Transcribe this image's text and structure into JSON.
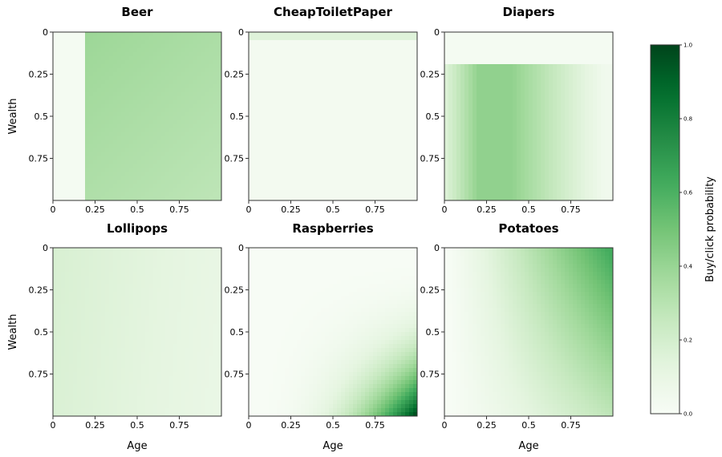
{
  "chart_data": {
    "type": "heatmap",
    "colormap": "Greens",
    "colorbar": {
      "label": "Buy/click probability",
      "range": [
        0.0,
        1.0
      ],
      "ticks": [
        "0.0",
        "0.2",
        "0.4",
        "0.6",
        "0.8",
        "1.0"
      ]
    },
    "x_axis": {
      "label": "Age",
      "range": [
        0,
        1
      ],
      "ticks": [
        "0",
        "0.25",
        "0.5",
        "0.75"
      ]
    },
    "y_axis": {
      "label": "Wealth",
      "range": [
        0,
        1
      ],
      "ticks": [
        "0",
        "0.25",
        "0.5",
        "0.75"
      ],
      "inverted": true
    },
    "panels": [
      {
        "id": "beer",
        "title": "Beer",
        "pattern": "Age below 0.2: ~0.02; age 0.2 and above: ~0.40 fading to ~0.30 toward high age and wealth"
      },
      {
        "id": "cheap-toilet-paper",
        "title": "CheapToiletPaper",
        "pattern": "Wealth below 0.04: ~0.15; elsewhere ~0.03"
      },
      {
        "id": "diapers",
        "title": "Diapers",
        "pattern": "Wealth below 0.2: ~0.02; wealth 0.2 and above: peak ~0.42 at age 0.2-0.4, falling to ~0.05 at age 0.95"
      },
      {
        "id": "lollipops",
        "title": "Lollipops",
        "pattern": "Uniformly low, ~0.18 at young age decreasing to ~0.10 at older age"
      },
      {
        "id": "raspberries",
        "title": "Raspberries",
        "pattern": "Near 0 for most of the grid, rising steeply to ~1.0 at high age and high wealth"
      },
      {
        "id": "potatoes",
        "title": "Potatoes",
        "pattern": "Near 0 at young age / high wealth, rising to ~0.6 at high age and low wealth"
      }
    ]
  }
}
